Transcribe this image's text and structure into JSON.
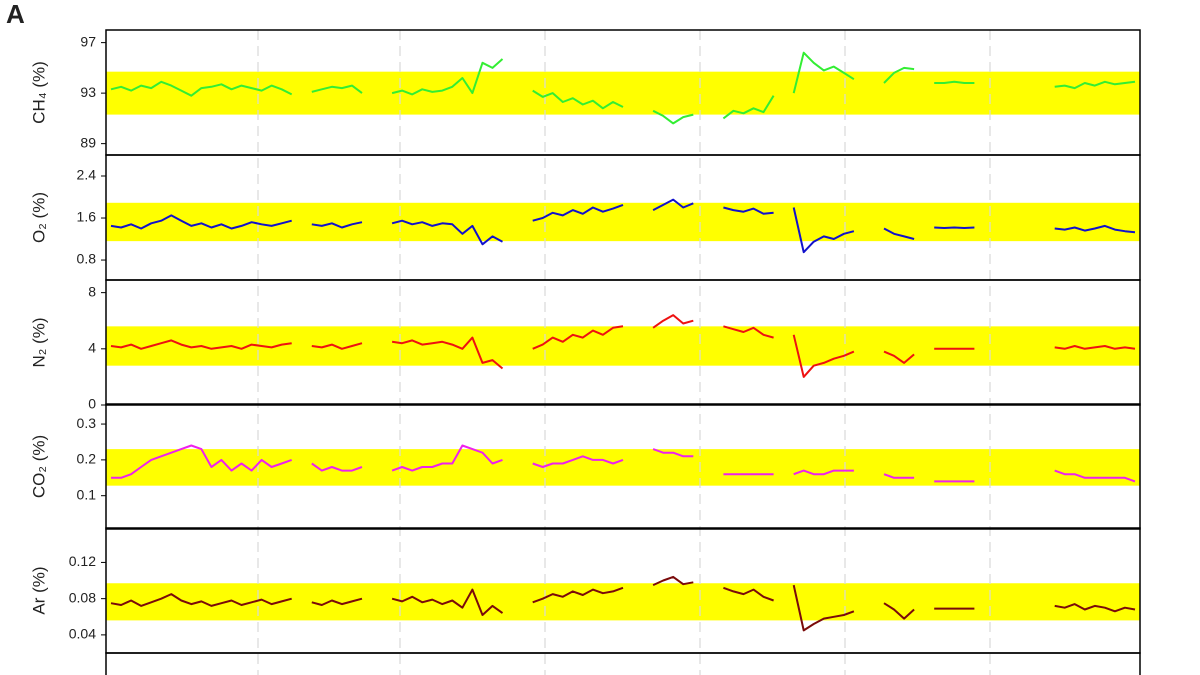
{
  "panel_label": "A",
  "chart_data": [
    {
      "type": "line",
      "ylabel": "CH₄ (%)",
      "color": "#33ee33",
      "band": [
        91.3,
        94.7
      ],
      "band_color": "#ffff00",
      "ylim": [
        88.1,
        98.0
      ],
      "yticks": [
        89,
        93,
        97
      ],
      "values": [
        93.3,
        93.5,
        93.2,
        93.6,
        93.4,
        93.9,
        93.6,
        93.2,
        92.8,
        93.4,
        93.5,
        93.7,
        93.3,
        93.6,
        93.4,
        93.2,
        93.6,
        93.3,
        92.9,
        null,
        93.1,
        93.3,
        93.5,
        93.4,
        93.6,
        93.0,
        null,
        null,
        93.0,
        93.2,
        92.9,
        93.3,
        93.1,
        93.2,
        93.5,
        94.2,
        93.0,
        95.4,
        95.0,
        95.7,
        null,
        null,
        93.2,
        92.7,
        93.0,
        92.3,
        92.6,
        92.1,
        92.4,
        91.8,
        92.3,
        91.9,
        null,
        null,
        91.6,
        91.2,
        90.6,
        91.1,
        91.3,
        null,
        null,
        91.0,
        91.6,
        91.4,
        91.8,
        91.5,
        92.8,
        null,
        93.0,
        96.2,
        95.4,
        94.8,
        95.1,
        94.6,
        94.1,
        null,
        null,
        93.8,
        94.6,
        95.0,
        94.9,
        null,
        93.8,
        93.8,
        93.9,
        93.8,
        93.8,
        null,
        null,
        null,
        null,
        null,
        null,
        null,
        93.5,
        93.6,
        93.4,
        93.8,
        93.6,
        93.9,
        93.7,
        93.8,
        93.9
      ]
    },
    {
      "type": "line",
      "ylabel": "O₂ (%)",
      "color": "#1111cc",
      "band": [
        1.16,
        1.89
      ],
      "band_color": "#ffff00",
      "ylim": [
        0.42,
        2.8
      ],
      "yticks": [
        0.8,
        1.6,
        2.4
      ],
      "values": [
        1.45,
        1.42,
        1.48,
        1.4,
        1.5,
        1.55,
        1.65,
        1.55,
        1.45,
        1.5,
        1.42,
        1.48,
        1.4,
        1.45,
        1.52,
        1.48,
        1.45,
        1.5,
        1.55,
        null,
        1.48,
        1.45,
        1.5,
        1.42,
        1.48,
        1.52,
        null,
        null,
        1.5,
        1.55,
        1.48,
        1.52,
        1.45,
        1.5,
        1.48,
        1.3,
        1.45,
        1.1,
        1.25,
        1.15,
        null,
        null,
        1.55,
        1.6,
        1.7,
        1.65,
        1.75,
        1.68,
        1.8,
        1.72,
        1.78,
        1.85,
        null,
        null,
        1.75,
        1.85,
        1.95,
        1.8,
        1.88,
        null,
        null,
        1.8,
        1.75,
        1.72,
        1.78,
        1.68,
        1.7,
        null,
        1.8,
        0.95,
        1.15,
        1.25,
        1.2,
        1.3,
        1.35,
        null,
        null,
        1.4,
        1.3,
        1.25,
        1.2,
        null,
        1.42,
        1.41,
        1.42,
        1.41,
        1.42,
        null,
        null,
        null,
        null,
        null,
        null,
        null,
        1.4,
        1.38,
        1.42,
        1.36,
        1.4,
        1.45,
        1.38,
        1.35,
        1.33
      ]
    },
    {
      "type": "line",
      "ylabel": "N₂ (%)",
      "color": "#ee1111",
      "band": [
        2.8,
        5.6
      ],
      "band_color": "#ffff00",
      "ylim": [
        0,
        8.9
      ],
      "yticks": [
        0,
        4,
        8
      ],
      "values": [
        4.2,
        4.1,
        4.3,
        4.0,
        4.2,
        4.4,
        4.6,
        4.3,
        4.1,
        4.2,
        4.0,
        4.1,
        4.2,
        4.0,
        4.3,
        4.2,
        4.1,
        4.3,
        4.4,
        null,
        4.2,
        4.1,
        4.3,
        4.0,
        4.2,
        4.4,
        null,
        null,
        4.5,
        4.4,
        4.6,
        4.3,
        4.4,
        4.5,
        4.3,
        4.0,
        4.8,
        3.0,
        3.2,
        2.6,
        null,
        null,
        4.0,
        4.3,
        4.8,
        4.5,
        5.0,
        4.8,
        5.3,
        5.0,
        5.5,
        5.6,
        null,
        null,
        5.5,
        6.0,
        6.4,
        5.8,
        6.0,
        null,
        null,
        5.6,
        5.4,
        5.2,
        5.5,
        5.0,
        4.8,
        null,
        5.0,
        2.0,
        2.8,
        3.0,
        3.3,
        3.5,
        3.8,
        null,
        null,
        3.8,
        3.5,
        3.0,
        3.6,
        null,
        4.0,
        4.0,
        4.0,
        4.0,
        4.0,
        null,
        null,
        null,
        null,
        null,
        null,
        null,
        4.1,
        4.0,
        4.2,
        4.0,
        4.1,
        4.2,
        4.0,
        4.1,
        4.0
      ]
    },
    {
      "type": "line",
      "ylabel": "CO₂ (%)",
      "color": "#ee22ee",
      "band": [
        0.128,
        0.23
      ],
      "band_color": "#ffff00",
      "ylim": [
        0.007,
        0.356
      ],
      "yticks": [
        0.1,
        0.2,
        0.3
      ],
      "values": [
        0.15,
        0.15,
        0.16,
        0.18,
        0.2,
        0.21,
        0.22,
        0.23,
        0.24,
        0.23,
        0.18,
        0.2,
        0.17,
        0.19,
        0.17,
        0.2,
        0.18,
        0.19,
        0.2,
        null,
        0.19,
        0.17,
        0.18,
        0.17,
        0.17,
        0.18,
        null,
        null,
        0.17,
        0.18,
        0.17,
        0.18,
        0.18,
        0.19,
        0.19,
        0.24,
        0.23,
        0.22,
        0.19,
        0.2,
        null,
        null,
        0.19,
        0.18,
        0.19,
        0.19,
        0.2,
        0.21,
        0.2,
        0.2,
        0.19,
        0.2,
        null,
        null,
        0.23,
        0.22,
        0.22,
        0.21,
        0.21,
        null,
        null,
        0.16,
        0.16,
        0.16,
        0.16,
        0.16,
        0.16,
        null,
        0.16,
        0.17,
        0.16,
        0.16,
        0.17,
        0.17,
        0.17,
        null,
        null,
        0.16,
        0.15,
        0.15,
        0.15,
        null,
        0.14,
        0.14,
        0.14,
        0.14,
        0.14,
        null,
        null,
        null,
        null,
        null,
        null,
        null,
        0.17,
        0.16,
        0.16,
        0.15,
        0.15,
        0.15,
        0.15,
        0.15,
        0.14
      ]
    },
    {
      "type": "line",
      "ylabel": "Ar (%)",
      "color": "#7a0a0a",
      "band": [
        0.056,
        0.097
      ],
      "band_color": "#ffff00",
      "ylim": [
        0.02,
        0.158
      ],
      "yticks": [
        0.04,
        0.08,
        0.12
      ],
      "values": [
        0.075,
        0.073,
        0.078,
        0.072,
        0.076,
        0.08,
        0.085,
        0.078,
        0.074,
        0.077,
        0.072,
        0.075,
        0.078,
        0.073,
        0.076,
        0.079,
        0.074,
        0.077,
        0.08,
        null,
        0.076,
        0.073,
        0.078,
        0.074,
        0.077,
        0.08,
        null,
        null,
        0.08,
        0.077,
        0.082,
        0.076,
        0.079,
        0.074,
        0.078,
        0.07,
        0.09,
        0.062,
        0.072,
        0.064,
        null,
        null,
        0.076,
        0.08,
        0.085,
        0.082,
        0.088,
        0.084,
        0.09,
        0.086,
        0.088,
        0.092,
        null,
        null,
        0.095,
        0.1,
        0.104,
        0.096,
        0.098,
        null,
        null,
        0.092,
        0.088,
        0.085,
        0.09,
        0.082,
        0.078,
        null,
        0.095,
        0.045,
        0.052,
        0.058,
        0.06,
        0.062,
        0.066,
        null,
        null,
        0.075,
        0.068,
        0.058,
        0.068,
        null,
        0.069,
        0.069,
        0.069,
        0.069,
        0.069,
        null,
        null,
        null,
        null,
        null,
        null,
        null,
        0.072,
        0.07,
        0.074,
        0.068,
        0.072,
        0.07,
        0.066,
        0.07,
        0.068
      ]
    }
  ]
}
